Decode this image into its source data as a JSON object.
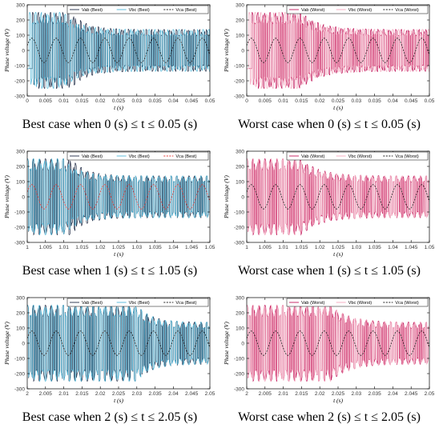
{
  "chart_data": [
    {
      "type": "line",
      "title": "",
      "caption": "Best case when 0 (s) ≤ t ≤ 0.05 (s)",
      "xlabel": "t (s)",
      "ylabel": "Phase voltage (V)",
      "xlim": [
        0,
        0.05
      ],
      "ylim": [
        -300,
        300
      ],
      "xticks": [
        "0",
        "0.005",
        "0.01",
        "0.015",
        "0.02",
        "0.025",
        "0.03",
        "0.035",
        "0.04",
        "0.045",
        "0.05"
      ],
      "yticks": [
        "-300",
        "-200",
        "-100",
        "0",
        "100",
        "200",
        "300"
      ],
      "grid": false,
      "legend_position": "top",
      "series": [
        {
          "name": "Vab (Best)",
          "color": "#1f2a44",
          "linestyle": "solid",
          "shape": "pwm",
          "amplitude": 250,
          "onset": 0.0014,
          "fast_until": 0.012,
          "carrier_hz": 1450,
          "settle": 0.004
        },
        {
          "name": "Vbc (Best)",
          "color": "#4fb6d8",
          "linestyle": "solid",
          "shape": "pwm",
          "amplitude": 250,
          "onset": 0.0006,
          "fast_until": 0.01,
          "carrier_hz": 1350,
          "settle": 0.004
        },
        {
          "name": "Vca (Best)",
          "color": "#222222",
          "linestyle": "dashed",
          "shape": "smooth",
          "amplitude": 80,
          "frequency_hz": 150
        }
      ]
    },
    {
      "type": "line",
      "title": "",
      "caption": "Worst case when 0 (s) ≤ t ≤ 0.05 (s)",
      "xlabel": "t (s)",
      "ylabel": "Phase voltage (V)",
      "xlim": [
        0,
        0.05
      ],
      "ylim": [
        -300,
        300
      ],
      "xticks": [
        "0",
        "0.005",
        "0.01",
        "0.015",
        "0.02",
        "0.025",
        "0.03",
        "0.035",
        "0.04",
        "0.045",
        "0.05"
      ],
      "yticks": [
        "-300",
        "-200",
        "-100",
        "0",
        "100",
        "200",
        "300"
      ],
      "grid": false,
      "legend_position": "top",
      "series": [
        {
          "name": "Vab (Worst)",
          "color": "#c2185b",
          "linestyle": "solid",
          "shape": "pwm",
          "amplitude": 250,
          "onset": 0.0014,
          "fast_until": 0.015,
          "carrier_hz": 1450,
          "settle": 0.005
        },
        {
          "name": "Vbc (Worst)",
          "color": "#f4a6bd",
          "linestyle": "solid",
          "shape": "pwm",
          "amplitude": 250,
          "onset": 0.0006,
          "fast_until": 0.014,
          "carrier_hz": 1350,
          "settle": 0.005
        },
        {
          "name": "Vca (Worst)",
          "color": "#222222",
          "linestyle": "dashed",
          "shape": "smooth",
          "amplitude": 80,
          "frequency_hz": 150
        }
      ]
    },
    {
      "type": "line",
      "title": "",
      "caption": "Best case when 1 (s) ≤ t ≤ 1.05 (s)",
      "xlabel": "t (s)",
      "ylabel": "Phase voltage (V)",
      "xlim": [
        1,
        1.05
      ],
      "ylim": [
        -300,
        300
      ],
      "xticks": [
        "1",
        "1.005",
        "1.01",
        "1.015",
        "1.02",
        "1.025",
        "1.03",
        "1.035",
        "1.04",
        "1.045",
        "1.05"
      ],
      "yticks": [
        "-300",
        "-200",
        "-100",
        "0",
        "100",
        "200",
        "300"
      ],
      "grid": false,
      "legend_position": "top",
      "series": [
        {
          "name": "Vab (Best)",
          "color": "#1f2a44",
          "linestyle": "solid",
          "shape": "pwm",
          "amplitude": 250,
          "onset": 1.0,
          "fast_until": 1.012,
          "carrier_hz": 1450,
          "settle": 0.004
        },
        {
          "name": "Vbc (Best)",
          "color": "#4fb6d8",
          "linestyle": "solid",
          "shape": "pwm",
          "amplitude": 250,
          "onset": 1.0,
          "fast_until": 1.01,
          "carrier_hz": 1350,
          "settle": 0.004
        },
        {
          "name": "Vca (Best)",
          "color": "#e53935",
          "linestyle": "dashed",
          "shape": "smooth",
          "amplitude": 80,
          "frequency_hz": 150
        }
      ]
    },
    {
      "type": "line",
      "title": "",
      "caption": "Worst case when 1 (s) ≤ t ≤ 1.05 (s)",
      "xlabel": "t (s)",
      "ylabel": "Phase voltage (V)",
      "xlim": [
        1,
        1.05
      ],
      "ylim": [
        -300,
        300
      ],
      "xticks": [
        "1",
        "1.005",
        "1.01",
        "1.015",
        "1.02",
        "1.025",
        "1.03",
        "1.035",
        "1.04",
        "1.045",
        "1.05"
      ],
      "yticks": [
        "-300",
        "-200",
        "-100",
        "0",
        "100",
        "200",
        "300"
      ],
      "grid": false,
      "legend_position": "top",
      "series": [
        {
          "name": "Vab (Worst)",
          "color": "#c2185b",
          "linestyle": "solid",
          "shape": "pwm",
          "amplitude": 250,
          "onset": 1.0,
          "fast_until": 1.015,
          "carrier_hz": 1450,
          "settle": 0.005
        },
        {
          "name": "Vbc (Worst)",
          "color": "#f4a6bd",
          "linestyle": "solid",
          "shape": "pwm",
          "amplitude": 250,
          "onset": 1.0,
          "fast_until": 1.014,
          "carrier_hz": 1350,
          "settle": 0.005
        },
        {
          "name": "Vca (Worst)",
          "color": "#222222",
          "linestyle": "dashed",
          "shape": "smooth",
          "amplitude": 80,
          "frequency_hz": 150
        }
      ]
    },
    {
      "type": "line",
      "title": "",
      "caption": "Best case when 2 (s) ≤ t ≤ 2.05 (s)",
      "xlabel": "t (s)",
      "ylabel": "Phase voltage (V)",
      "xlim": [
        2,
        2.05
      ],
      "ylim": [
        -300,
        300
      ],
      "xticks": [
        "2",
        "2.005",
        "2.01",
        "2.015",
        "2.02",
        "2.025",
        "2.03",
        "2.035",
        "2.04",
        "2.045",
        "2.05"
      ],
      "yticks": [
        "-300",
        "-200",
        "-100",
        "0",
        "100",
        "200",
        "300"
      ],
      "grid": false,
      "legend_position": "top",
      "series": [
        {
          "name": "Vab (Best)",
          "color": "#1f2a44",
          "linestyle": "solid",
          "shape": "pwm",
          "amplitude": 250,
          "onset": 2.0,
          "fast_until": 2.03,
          "carrier_hz": 1450,
          "settle": 0.004
        },
        {
          "name": "Vbc (Best)",
          "color": "#4fb6d8",
          "linestyle": "solid",
          "shape": "pwm",
          "amplitude": 250,
          "onset": 2.0,
          "fast_until": 2.03,
          "carrier_hz": 1350,
          "settle": 0.004
        },
        {
          "name": "Vca (Best)",
          "color": "#222222",
          "linestyle": "dashed",
          "shape": "smooth",
          "amplitude": 80,
          "frequency_hz": 150
        }
      ]
    },
    {
      "type": "line",
      "title": "",
      "caption": "Worst case when 2 (s) ≤ t ≤ 2.05 (s)",
      "xlabel": "t (s)",
      "ylabel": "Phase voltage (V)",
      "xlim": [
        2,
        2.05
      ],
      "ylim": [
        -300,
        300
      ],
      "xticks": [
        "2",
        "2.005",
        "2.01",
        "2.015",
        "2.02",
        "2.025",
        "2.03",
        "2.035",
        "2.04",
        "2.045",
        "2.05"
      ],
      "yticks": [
        "-300",
        "-200",
        "-100",
        "0",
        "100",
        "200",
        "300"
      ],
      "grid": false,
      "legend_position": "top",
      "series": [
        {
          "name": "Vab (Worst)",
          "color": "#c2185b",
          "linestyle": "solid",
          "shape": "pwm",
          "amplitude": 250,
          "onset": 2.0,
          "fast_until": 2.023,
          "carrier_hz": 1450,
          "settle": 0.005
        },
        {
          "name": "Vbc (Worst)",
          "color": "#f4a6bd",
          "linestyle": "solid",
          "shape": "pwm",
          "amplitude": 250,
          "onset": 2.0,
          "fast_until": 2.023,
          "carrier_hz": 1350,
          "settle": 0.005
        },
        {
          "name": "Vca (Worst)",
          "color": "#222222",
          "linestyle": "dashed",
          "shape": "smooth",
          "amplitude": 80,
          "frequency_hz": 150
        }
      ]
    }
  ]
}
